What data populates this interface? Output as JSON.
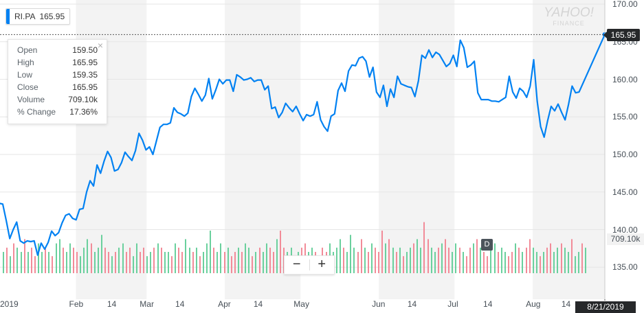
{
  "ticker": {
    "symbol": "RI.PA",
    "price": "165.95"
  },
  "logo": {
    "main": "YAHOO!",
    "sub": "FINANCE"
  },
  "tooltip": {
    "rows": [
      {
        "label": "Open",
        "value": "159.50"
      },
      {
        "label": "High",
        "value": "165.95"
      },
      {
        "label": "Low",
        "value": "159.35"
      },
      {
        "label": "Close",
        "value": "165.95"
      },
      {
        "label": "Volume",
        "value": "709.10k"
      },
      {
        "label": "% Change",
        "value": "17.36%"
      }
    ]
  },
  "price_tag": "165.95",
  "volume_tag": "709.10k",
  "date_tag": "8/21/2019",
  "event_marker": "D",
  "zoom": {
    "minus": "−",
    "plus": "+"
  },
  "colors": {
    "line": "#0081f2",
    "up": "#6ad09d",
    "down": "#f28b98",
    "band": "#f3f3f3",
    "grid": "#e6e6e6"
  },
  "chart_data": {
    "type": "line",
    "ylim": [
      130,
      172
    ],
    "y_ticks": [
      "170.00",
      "165.00",
      "160.00",
      "155.00",
      "150.00",
      "145.00",
      "140.00",
      "135.00"
    ],
    "x_ticks": [
      {
        "label": "2019",
        "day": 0
      },
      {
        "label": "Feb",
        "day": 29
      },
      {
        "label": "14",
        "day": 43
      },
      {
        "label": "Mar",
        "day": 57
      },
      {
        "label": "14",
        "day": 70
      },
      {
        "label": "Apr",
        "day": 88
      },
      {
        "label": "14",
        "day": 101
      },
      {
        "label": "May",
        "day": 118
      },
      {
        "label": "Jun",
        "day": 149
      },
      {
        "label": "14",
        "day": 162
      },
      {
        "label": "Jul",
        "day": 179
      },
      {
        "label": "14",
        "day": 192
      },
      {
        "label": "Aug",
        "day": 210
      },
      {
        "label": "14",
        "day": 223
      }
    ],
    "last_day": 232,
    "close_series": {
      "name": "RI.PA",
      "points": [
        [
          -2,
          143.6
        ],
        [
          0,
          143.4
        ],
        [
          1,
          141.2
        ],
        [
          2,
          138.8
        ],
        [
          3,
          140.0
        ],
        [
          4,
          141.0
        ],
        [
          5,
          138.5
        ],
        [
          6,
          138.2
        ],
        [
          7,
          138.5
        ],
        [
          8,
          138.4
        ],
        [
          9,
          138.5
        ],
        [
          10,
          136.6
        ],
        [
          11,
          138.2
        ],
        [
          12,
          137.4
        ],
        [
          13,
          138.3
        ],
        [
          14,
          139.8
        ],
        [
          15,
          139.2
        ],
        [
          16,
          139.6
        ],
        [
          17,
          140.9
        ],
        [
          18,
          141.9
        ],
        [
          19,
          142.1
        ],
        [
          20,
          141.5
        ],
        [
          21,
          141.3
        ],
        [
          22,
          142.7
        ],
        [
          23,
          142.8
        ],
        [
          24,
          145.0
        ],
        [
          25,
          146.5
        ],
        [
          26,
          145.8
        ],
        [
          27,
          148.6
        ],
        [
          28,
          147.5
        ],
        [
          29,
          149.1
        ],
        [
          30,
          150.4
        ],
        [
          31,
          149.6
        ],
        [
          32,
          147.8
        ],
        [
          33,
          148.0
        ],
        [
          34,
          148.9
        ],
        [
          35,
          150.3
        ],
        [
          36,
          149.7
        ],
        [
          37,
          149.2
        ],
        [
          38,
          150.5
        ],
        [
          39,
          152.8
        ],
        [
          40,
          151.9
        ],
        [
          41,
          150.6
        ],
        [
          42,
          151.0
        ],
        [
          43,
          150.0
        ],
        [
          44,
          151.8
        ],
        [
          45,
          153.6
        ],
        [
          46,
          154.0
        ],
        [
          47,
          154.0
        ],
        [
          48,
          154.2
        ],
        [
          49,
          156.2
        ],
        [
          50,
          155.6
        ],
        [
          51,
          155.4
        ],
        [
          52,
          155.1
        ],
        [
          53,
          155.5
        ],
        [
          54,
          157.7
        ],
        [
          55,
          158.8
        ],
        [
          56,
          158.0
        ],
        [
          57,
          157.1
        ],
        [
          58,
          157.9
        ],
        [
          59,
          160.1
        ],
        [
          60,
          157.4
        ],
        [
          61,
          158.6
        ],
        [
          62,
          160.0
        ],
        [
          63,
          159.4
        ],
        [
          64,
          159.9
        ],
        [
          65,
          159.9
        ],
        [
          66,
          158.4
        ],
        [
          67,
          160.6
        ],
        [
          68,
          160.3
        ],
        [
          69,
          159.9
        ],
        [
          70,
          160.0
        ],
        [
          71,
          160.2
        ],
        [
          72,
          159.7
        ],
        [
          73,
          159.9
        ],
        [
          74,
          159.9
        ],
        [
          75,
          158.6
        ],
        [
          76,
          159.1
        ],
        [
          77,
          156.1
        ],
        [
          78,
          156.3
        ],
        [
          79,
          154.9
        ],
        [
          80,
          155.6
        ],
        [
          81,
          156.8
        ],
        [
          82,
          156.2
        ],
        [
          83,
          155.7
        ],
        [
          84,
          156.4
        ],
        [
          85,
          155.4
        ],
        [
          86,
          154.5
        ],
        [
          87,
          155.3
        ],
        [
          88,
          155.1
        ],
        [
          89,
          155.3
        ],
        [
          90,
          157.0
        ],
        [
          91,
          154.6
        ],
        [
          92,
          153.7
        ],
        [
          93,
          153.1
        ],
        [
          94,
          155.1
        ],
        [
          95,
          155.4
        ],
        [
          96,
          158.5
        ],
        [
          97,
          159.5
        ],
        [
          98,
          158.4
        ],
        [
          99,
          161.1
        ],
        [
          100,
          161.9
        ],
        [
          101,
          161.8
        ],
        [
          102,
          162.8
        ],
        [
          103,
          163.0
        ],
        [
          104,
          162.4
        ],
        [
          105,
          160.3
        ],
        [
          106,
          161.6
        ],
        [
          107,
          158.3
        ],
        [
          108,
          157.6
        ],
        [
          109,
          159.2
        ],
        [
          110,
          156.4
        ],
        [
          111,
          158.7
        ],
        [
          112,
          157.6
        ],
        [
          113,
          160.4
        ],
        [
          114,
          159.4
        ],
        [
          115,
          159.2
        ],
        [
          116,
          159.0
        ],
        [
          117,
          158.9
        ],
        [
          118,
          157.7
        ],
        [
          119,
          159.8
        ],
        [
          120,
          163.2
        ],
        [
          121,
          162.8
        ],
        [
          122,
          163.9
        ],
        [
          123,
          162.9
        ],
        [
          124,
          163.6
        ],
        [
          125,
          163.3
        ],
        [
          126,
          162.5
        ],
        [
          127,
          161.7
        ],
        [
          128,
          162.1
        ],
        [
          129,
          163.2
        ],
        [
          130,
          161.7
        ],
        [
          131,
          165.2
        ],
        [
          132,
          164.2
        ],
        [
          133,
          161.6
        ],
        [
          134,
          161.9
        ],
        [
          135,
          162.4
        ],
        [
          136,
          158.2
        ],
        [
          137,
          157.3
        ],
        [
          138,
          157.3
        ],
        [
          139,
          157.3
        ],
        [
          140,
          157.1
        ],
        [
          141,
          157.1
        ],
        [
          142,
          157.0
        ],
        [
          143,
          157.3
        ],
        [
          144,
          157.6
        ],
        [
          145,
          160.4
        ],
        [
          146,
          158.3
        ],
        [
          147,
          157.5
        ],
        [
          148,
          158.8
        ],
        [
          149,
          158.4
        ],
        [
          150,
          157.6
        ],
        [
          151,
          159.1
        ],
        [
          152,
          162.6
        ],
        [
          153,
          157.1
        ],
        [
          154,
          153.7
        ],
        [
          155,
          152.3
        ],
        [
          156,
          154.5
        ],
        [
          157,
          156.4
        ],
        [
          158,
          155.8
        ],
        [
          159,
          156.7
        ],
        [
          160,
          155.6
        ],
        [
          161,
          154.6
        ],
        [
          162,
          156.7
        ],
        [
          163,
          159.1
        ],
        [
          164,
          158.2
        ],
        [
          165,
          158.3
        ],
        [
          166,
          165.95
        ]
      ]
    },
    "volume_series": {
      "name": "Volume",
      "max_value": "709.10k",
      "bars": [
        5,
        6,
        4,
        7,
        6,
        5,
        8,
        5,
        6,
        4,
        7,
        5,
        6,
        5,
        4,
        7,
        8,
        6,
        5,
        7,
        6,
        5,
        4,
        6,
        8,
        7,
        5,
        6,
        9,
        6,
        5,
        4,
        5,
        6,
        7,
        5,
        6,
        4,
        7,
        5,
        6,
        4,
        5,
        6,
        7,
        6,
        5,
        5,
        4,
        7,
        6,
        5,
        8,
        6,
        5,
        6,
        4,
        5,
        7,
        10,
        6,
        5,
        7,
        5,
        6,
        4,
        5,
        6,
        5,
        7,
        6,
        4,
        5,
        6,
        5,
        7,
        6,
        5,
        8,
        10,
        6,
        5,
        6,
        4,
        5,
        6,
        7,
        5,
        6,
        5,
        4,
        6,
        5,
        7,
        5,
        6,
        8,
        6,
        5,
        9,
        6,
        5,
        8,
        6,
        5,
        7,
        6,
        5,
        10,
        7,
        8,
        6,
        5,
        6,
        4,
        5,
        6,
        7,
        8,
        6,
        12,
        8,
        6,
        5,
        6,
        7,
        8,
        6,
        5,
        7,
        6,
        5,
        4,
        6,
        7,
        8,
        6,
        5,
        4,
        6,
        7,
        5,
        6,
        5,
        4,
        5,
        7,
        6,
        5,
        6,
        8,
        6,
        5,
        4,
        5,
        6,
        7,
        5,
        6,
        7,
        6,
        5,
        8,
        4,
        5,
        7,
        6
      ],
      "up": [
        1,
        0,
        1,
        0,
        1,
        1,
        0,
        1,
        0,
        0,
        1,
        1,
        0,
        1,
        0,
        1,
        1,
        0,
        1,
        1,
        0,
        0,
        1,
        1,
        1,
        0,
        1,
        1,
        1,
        0,
        0,
        1,
        0,
        1,
        1,
        0,
        0,
        1,
        1,
        0,
        0,
        1,
        1,
        0,
        1,
        0,
        1,
        1,
        0,
        1,
        0,
        0,
        1,
        1,
        0,
        1,
        0,
        1,
        1,
        1,
        0,
        1,
        1,
        0,
        1,
        0,
        0,
        1,
        0,
        1,
        1,
        0,
        1,
        0,
        1,
        1,
        0,
        0,
        1,
        0,
        0,
        1,
        1,
        0,
        1,
        0,
        0,
        1,
        1,
        0,
        1,
        0,
        0,
        1,
        1,
        1,
        1,
        0,
        1,
        1,
        1,
        0,
        0,
        1,
        0,
        1,
        0,
        0,
        0,
        1,
        0,
        1,
        0,
        1,
        0,
        1,
        1,
        0,
        1,
        1,
        0,
        0,
        1,
        1,
        0,
        1,
        0,
        0,
        1,
        1,
        0,
        1,
        0,
        0,
        1,
        0,
        1,
        0,
        0,
        1,
        1,
        0,
        1,
        1,
        0,
        0,
        1,
        0,
        1,
        0,
        0,
        1,
        1,
        0,
        1,
        0,
        0,
        1,
        1,
        0,
        1,
        1,
        0,
        1,
        1,
        0,
        1
      ]
    }
  }
}
